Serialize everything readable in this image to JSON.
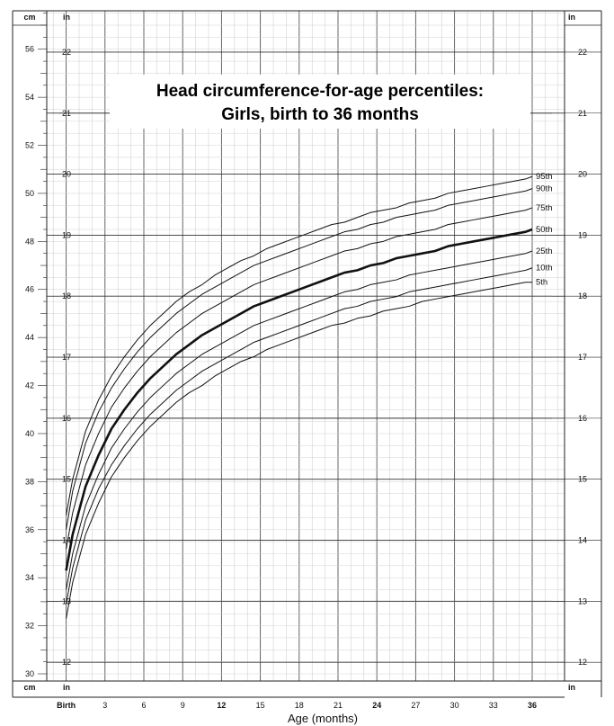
{
  "chart_data": {
    "type": "line",
    "title_lines": [
      "Head circumference-for-age percentiles:",
      "Girls, birth to 36 months"
    ],
    "xlabel": "Age (months)",
    "x_ticks": [
      {
        "value": 0,
        "label": "Birth",
        "bold": true
      },
      {
        "value": 3,
        "label": "3",
        "bold": false
      },
      {
        "value": 6,
        "label": "6",
        "bold": false
      },
      {
        "value": 9,
        "label": "9",
        "bold": false
      },
      {
        "value": 12,
        "label": "12",
        "bold": true
      },
      {
        "value": 15,
        "label": "15",
        "bold": false
      },
      {
        "value": 18,
        "label": "18",
        "bold": false
      },
      {
        "value": 21,
        "label": "21",
        "bold": false
      },
      {
        "value": 24,
        "label": "24",
        "bold": true
      },
      {
        "value": 27,
        "label": "27",
        "bold": false
      },
      {
        "value": 30,
        "label": "30",
        "bold": false
      },
      {
        "value": 33,
        "label": "33",
        "bold": false
      },
      {
        "value": 36,
        "label": "36",
        "bold": true
      }
    ],
    "xlim": [
      -1.5,
      38.5
    ],
    "ylim_cm": [
      29.7,
      57.6
    ],
    "cm_ticks": [
      30,
      32,
      34,
      36,
      38,
      40,
      42,
      44,
      46,
      48,
      50,
      52,
      54,
      56
    ],
    "in_ticks": [
      12,
      13,
      14,
      15,
      16,
      17,
      18,
      19,
      20,
      21,
      22
    ],
    "unit_labels": {
      "cm": "cm",
      "in": "in"
    },
    "grid": true,
    "x": [
      0,
      0.5,
      1.5,
      2.5,
      3.5,
      4.5,
      5.5,
      6.5,
      7.5,
      8.5,
      9.5,
      10.5,
      11.5,
      12.5,
      13.5,
      14.5,
      15.5,
      16.5,
      17.5,
      18.5,
      19.5,
      20.5,
      21.5,
      22.5,
      23.5,
      24.5,
      25.5,
      26.5,
      27.5,
      28.5,
      29.5,
      30.5,
      31.5,
      32.5,
      33.5,
      34.5,
      35.5,
      36
    ],
    "series": [
      {
        "name": "95th",
        "bold": false,
        "values": [
          36.6,
          38.1,
          40.1,
          41.4,
          42.4,
          43.2,
          43.9,
          44.5,
          45.0,
          45.5,
          45.9,
          46.2,
          46.6,
          46.9,
          47.2,
          47.4,
          47.7,
          47.9,
          48.1,
          48.3,
          48.5,
          48.7,
          48.8,
          49.0,
          49.2,
          49.3,
          49.4,
          49.6,
          49.7,
          49.8,
          50.0,
          50.1,
          50.2,
          50.3,
          50.4,
          50.5,
          50.6,
          50.7
        ]
      },
      {
        "name": "90th",
        "bold": false,
        "values": [
          36.0,
          37.6,
          39.6,
          40.9,
          41.9,
          42.7,
          43.4,
          44.0,
          44.5,
          45.0,
          45.4,
          45.8,
          46.1,
          46.4,
          46.7,
          47.0,
          47.2,
          47.4,
          47.6,
          47.8,
          48.0,
          48.2,
          48.4,
          48.5,
          48.7,
          48.8,
          49.0,
          49.1,
          49.2,
          49.3,
          49.5,
          49.6,
          49.7,
          49.8,
          49.9,
          50.0,
          50.1,
          50.2
        ]
      },
      {
        "name": "75th",
        "bold": false,
        "values": [
          35.2,
          36.7,
          38.7,
          40.0,
          41.1,
          41.9,
          42.6,
          43.2,
          43.7,
          44.2,
          44.6,
          45.0,
          45.3,
          45.6,
          45.9,
          46.2,
          46.4,
          46.6,
          46.8,
          47.0,
          47.2,
          47.4,
          47.6,
          47.7,
          47.9,
          48.0,
          48.2,
          48.3,
          48.4,
          48.5,
          48.7,
          48.8,
          48.9,
          49.0,
          49.1,
          49.2,
          49.3,
          49.4
        ]
      },
      {
        "name": "50th",
        "bold": true,
        "values": [
          34.3,
          35.8,
          37.8,
          39.1,
          40.2,
          41.0,
          41.7,
          42.3,
          42.8,
          43.3,
          43.7,
          44.1,
          44.4,
          44.7,
          45.0,
          45.3,
          45.5,
          45.7,
          45.9,
          46.1,
          46.3,
          46.5,
          46.7,
          46.8,
          47.0,
          47.1,
          47.3,
          47.4,
          47.5,
          47.6,
          47.8,
          47.9,
          48.0,
          48.1,
          48.2,
          48.3,
          48.4,
          48.5
        ]
      },
      {
        "name": "25th",
        "bold": false,
        "values": [
          33.5,
          35.0,
          37.0,
          38.3,
          39.4,
          40.2,
          40.9,
          41.5,
          42.0,
          42.5,
          42.9,
          43.3,
          43.6,
          43.9,
          44.2,
          44.5,
          44.7,
          44.9,
          45.1,
          45.3,
          45.5,
          45.7,
          45.9,
          46.0,
          46.2,
          46.3,
          46.4,
          46.6,
          46.7,
          46.8,
          46.9,
          47.0,
          47.1,
          47.2,
          47.3,
          47.4,
          47.5,
          47.6
        ]
      },
      {
        "name": "10th",
        "bold": false,
        "values": [
          32.9,
          34.4,
          36.4,
          37.7,
          38.7,
          39.5,
          40.2,
          40.8,
          41.3,
          41.8,
          42.2,
          42.6,
          42.9,
          43.2,
          43.5,
          43.8,
          44.0,
          44.2,
          44.4,
          44.6,
          44.8,
          45.0,
          45.2,
          45.3,
          45.5,
          45.6,
          45.7,
          45.9,
          46.0,
          46.1,
          46.2,
          46.3,
          46.4,
          46.5,
          46.6,
          46.7,
          46.8,
          46.9
        ]
      },
      {
        "name": "5th",
        "bold": false,
        "values": [
          32.3,
          33.8,
          35.8,
          37.1,
          38.2,
          39.0,
          39.7,
          40.3,
          40.8,
          41.3,
          41.7,
          42.0,
          42.4,
          42.7,
          43.0,
          43.2,
          43.5,
          43.7,
          43.9,
          44.1,
          44.3,
          44.5,
          44.6,
          44.8,
          44.9,
          45.1,
          45.2,
          45.3,
          45.5,
          45.6,
          45.7,
          45.8,
          45.9,
          46.0,
          46.1,
          46.2,
          46.3,
          46.3
        ]
      }
    ]
  }
}
